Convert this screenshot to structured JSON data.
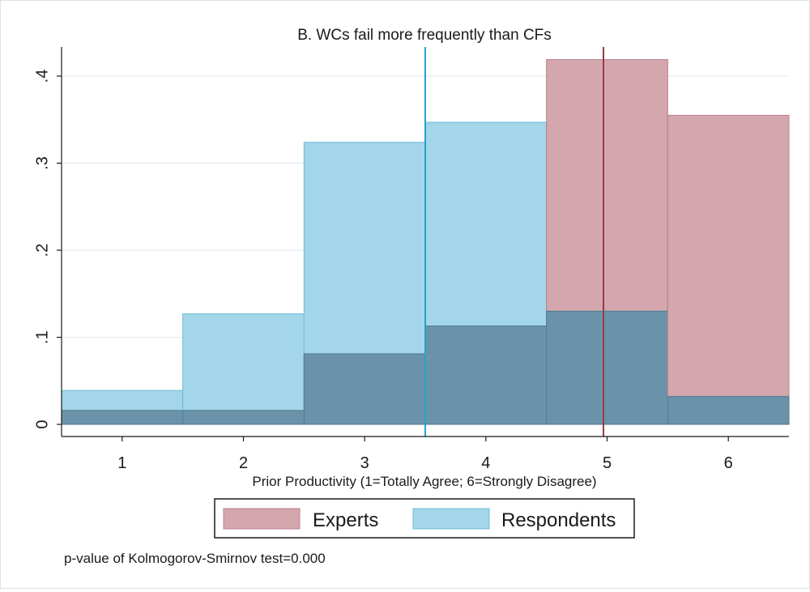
{
  "chart_data": {
    "type": "histogram",
    "title": "B. WCs fail more frequently than CFs",
    "xlabel": "Prior Productivity (1=Totally Agree; 6=Strongly Disagree)",
    "ylabel": "",
    "categories": [
      "1",
      "2",
      "3",
      "4",
      "5",
      "6"
    ],
    "x": [
      1,
      2,
      3,
      4,
      5,
      6
    ],
    "xlim": [
      0.5,
      6.5
    ],
    "ylim": [
      0,
      0.43
    ],
    "yticks": [
      0,
      0.1,
      0.2,
      0.3,
      0.4
    ],
    "ytick_labels": [
      "0",
      ".1",
      ".2",
      ".3",
      ".4"
    ],
    "grid": true,
    "series": [
      {
        "name": "Experts",
        "color": "#c98a94",
        "values": [
          0.016,
          0.016,
          0.081,
          0.113,
          0.419,
          0.355
        ]
      },
      {
        "name": "Respondents",
        "color": "#5fb9d9",
        "values": [
          0.039,
          0.127,
          0.324,
          0.347,
          0.13,
          0.032
        ]
      }
    ],
    "overlap_color": "#6a93a9",
    "mean_lines": [
      {
        "name": "Respondents mean",
        "x": 3.5,
        "color": "#2a9fd0"
      },
      {
        "name": "Experts mean",
        "x": 4.97,
        "color": "#9c3a45"
      }
    ],
    "legend": {
      "position": "bottom",
      "entries": [
        "Experts",
        "Respondents"
      ]
    },
    "note": "p-value of Kolmogorov-Smirnov test=0.000"
  }
}
